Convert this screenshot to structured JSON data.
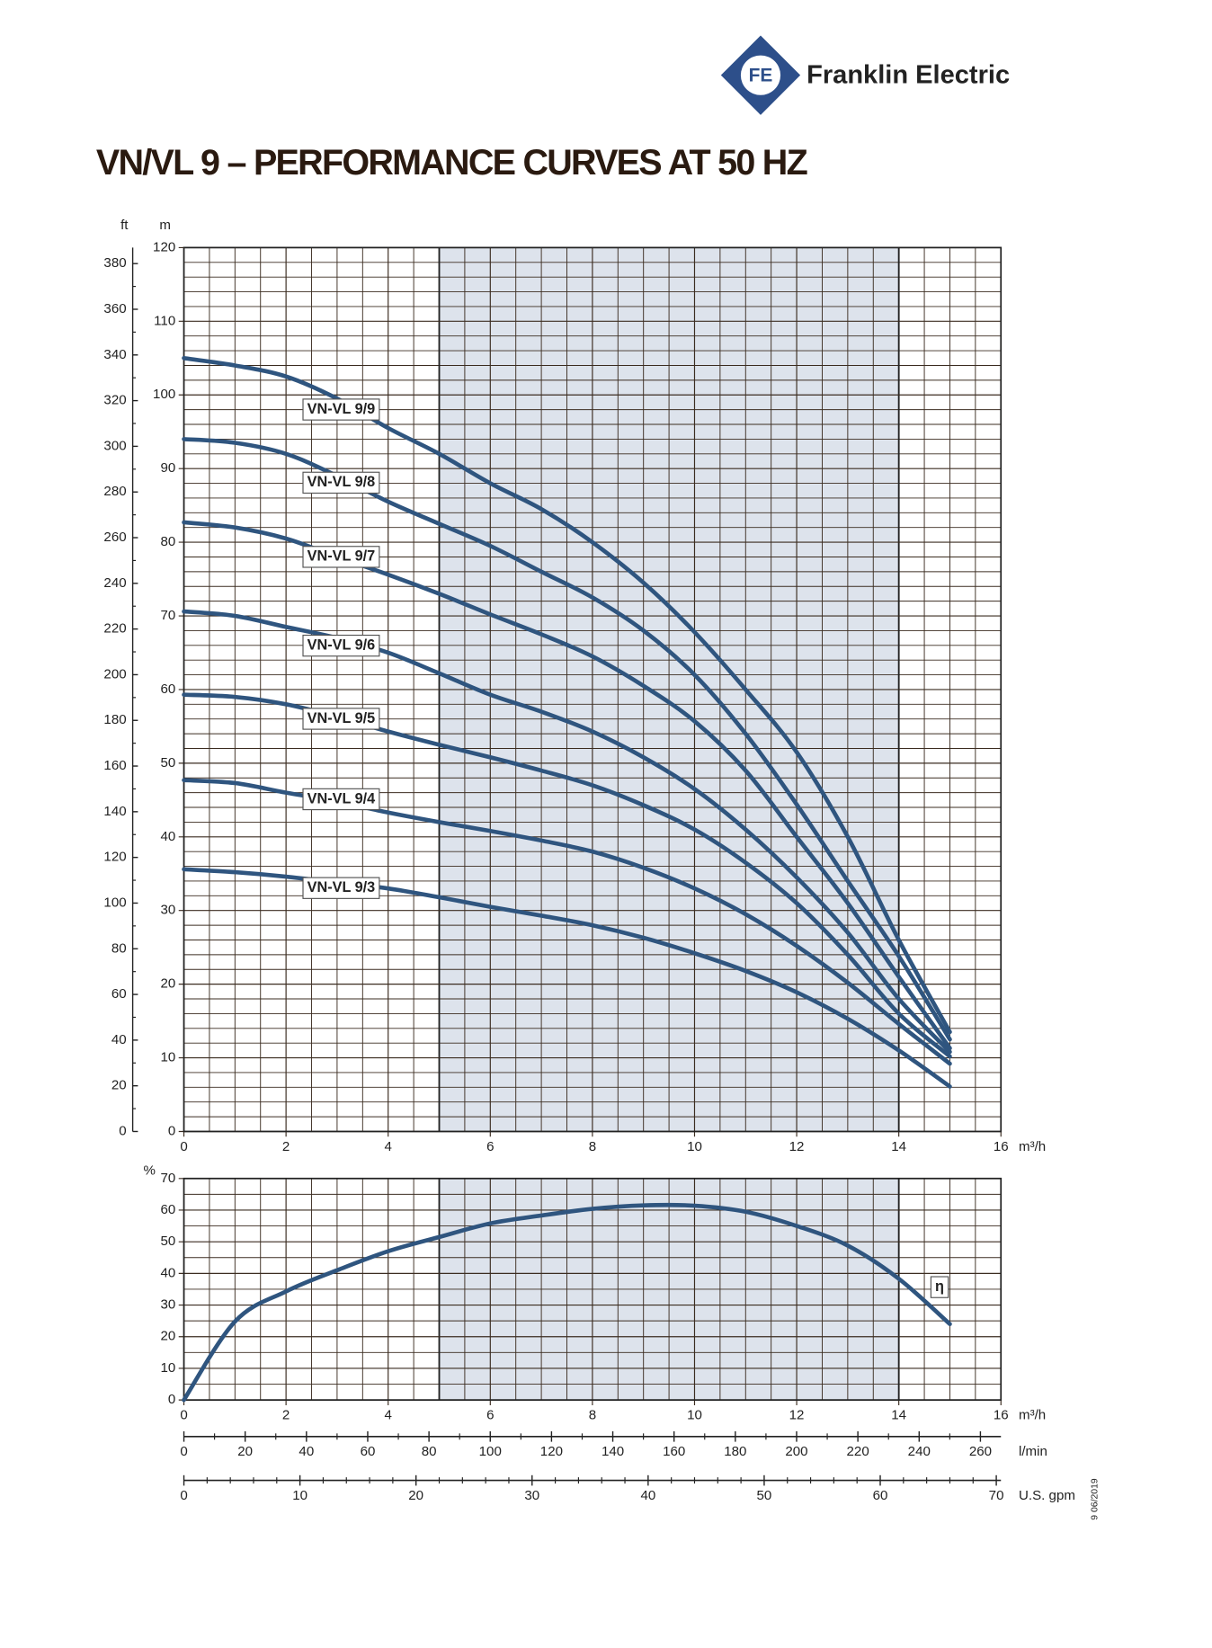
{
  "header": {
    "logo_text": "Franklin Electric",
    "title": "VN/VL 9 – PERFORMANCE CURVES AT 50 HZ",
    "date": "9 06/2019"
  },
  "chart_data": [
    {
      "type": "line",
      "x": [
        0,
        1,
        2,
        3,
        4,
        5,
        6,
        7,
        8,
        9,
        10,
        11,
        12,
        13,
        14,
        15
      ],
      "xlim": [
        0,
        16
      ],
      "xticks": [
        0,
        2,
        4,
        6,
        8,
        10,
        12,
        14,
        16
      ],
      "x_label": "m³/h",
      "ylim": [
        0,
        120
      ],
      "yticks": [
        0,
        10,
        20,
        30,
        40,
        50,
        60,
        70,
        80,
        90,
        100,
        110,
        120
      ],
      "y_label": "m",
      "y2lim": [
        0,
        387
      ],
      "y2ticks": [
        0,
        20,
        40,
        60,
        80,
        100,
        120,
        140,
        160,
        180,
        200,
        220,
        240,
        260,
        280,
        300,
        320,
        340,
        360,
        380
      ],
      "y2_label": "ft",
      "highlight_x": [
        5,
        14
      ],
      "grid": true,
      "series": [
        {
          "name": "VN-VL 9/9",
          "color": "#2f557f",
          "values": [
            105,
            104,
            102.5,
            99.5,
            95.5,
            92,
            88,
            84.5,
            80,
            74.5,
            67.8,
            60,
            51.5,
            40,
            26,
            13.5
          ]
        },
        {
          "name": "VN-VL 9/8",
          "color": "#2f557f",
          "values": [
            94,
            93.5,
            92,
            89,
            85.5,
            82.5,
            79.5,
            76,
            72.5,
            68,
            62,
            54,
            44.4,
            34,
            23.8,
            12.5
          ]
        },
        {
          "name": "VN-VL 9/7",
          "color": "#2f557f",
          "values": [
            82.7,
            82,
            80.5,
            78,
            75.6,
            73,
            70.2,
            67.5,
            64.5,
            60.5,
            55.7,
            49,
            40,
            31,
            21,
            11.3
          ]
        },
        {
          "name": "VN-VL 9/6",
          "color": "#2f557f",
          "values": [
            70.6,
            70,
            68.5,
            67,
            65,
            62.2,
            59.3,
            57,
            54.3,
            50.8,
            46.5,
            41,
            34.5,
            27,
            18,
            10.8
          ]
        },
        {
          "name": "VN-VL 9/5",
          "color": "#2f557f",
          "values": [
            59.3,
            59,
            58,
            56.3,
            54.3,
            52.5,
            50.8,
            49,
            47,
            44.3,
            41,
            36.5,
            31,
            24,
            16,
            10.2
          ]
        },
        {
          "name": "VN-VL 9/4",
          "color": "#2f557f",
          "values": [
            47.7,
            47.3,
            46,
            44.8,
            43.3,
            42,
            40.8,
            39.5,
            38,
            35.8,
            33,
            29.5,
            25.2,
            20.2,
            14.6,
            9.2
          ]
        },
        {
          "name": "VN-VL 9/3",
          "color": "#2f557f",
          "values": [
            35.6,
            35.2,
            34.6,
            33.8,
            33,
            31.8,
            30.5,
            29.3,
            28,
            26.3,
            24.2,
            21.8,
            18.9,
            15.3,
            11,
            6.1
          ]
        }
      ]
    },
    {
      "type": "line",
      "x": [
        0,
        1,
        2,
        3,
        4,
        5,
        6,
        7,
        8,
        9,
        10,
        11,
        12,
        13,
        14,
        15
      ],
      "xlim": [
        0,
        16
      ],
      "xticks": [
        0,
        2,
        4,
        6,
        8,
        10,
        12,
        14,
        16
      ],
      "x_label": "m³/h",
      "ylim": [
        0,
        70
      ],
      "yticks": [
        0,
        10,
        20,
        30,
        40,
        50,
        60,
        70
      ],
      "y_label": "%",
      "highlight_x": [
        5,
        14
      ],
      "grid": true,
      "series": [
        {
          "name": "η",
          "color": "#2f557f",
          "values": [
            0,
            24.8,
            34.3,
            41,
            47,
            51.5,
            55.8,
            58.3,
            60.4,
            61.5,
            61.4,
            59.5,
            55,
            48.8,
            38.3,
            24
          ]
        }
      ],
      "secondary_x_axes": [
        {
          "label": "l/min",
          "xlim": [
            0,
            266.7
          ],
          "xticks": [
            0,
            20,
            40,
            60,
            80,
            100,
            120,
            140,
            160,
            180,
            200,
            220,
            240,
            260
          ]
        },
        {
          "label": "U.S. gpm",
          "xlim": [
            0,
            70.4
          ],
          "xticks": [
            0,
            10,
            20,
            30,
            40,
            50,
            60,
            70
          ]
        }
      ]
    }
  ]
}
